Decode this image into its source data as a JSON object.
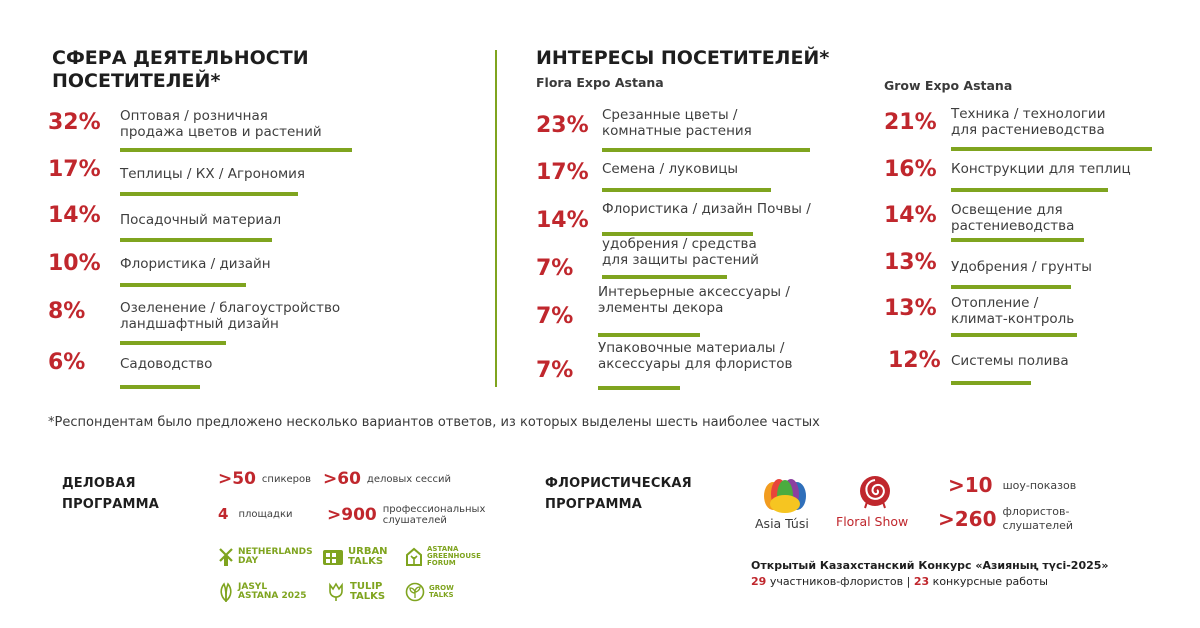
{
  "left": {
    "title": "СФЕРА ДЕЯТЕЛЬНОСТИ\nПОСЕТИТЕЛЕЙ*",
    "items": [
      {
        "pct": "32%",
        "label": "Оптовая / розничная\nпродажа цветов и растений",
        "value": 32
      },
      {
        "pct": "17%",
        "label": "Теплицы / КХ / Агрономия",
        "value": 17
      },
      {
        "pct": "14%",
        "label": "Посадочный материал",
        "value": 14
      },
      {
        "pct": "10%",
        "label": "Флористика / дизайн",
        "value": 10
      },
      {
        "pct": "8%",
        "label": "Озеленение / благоустройство\nландшафтный дизайн",
        "value": 8
      },
      {
        "pct": "6%",
        "label": "Садоводство",
        "value": 6
      }
    ]
  },
  "right": {
    "title": "ИНТЕРЕСЫ ПОСЕТИТЕЛЕЙ*",
    "flora": {
      "subtitle": "Flora Expo Astana",
      "items": [
        {
          "pct": "23%",
          "label": "Срезанные цветы /\nкомнатные растения",
          "value": 23
        },
        {
          "pct": "17%",
          "label": "Семена / луковицы",
          "value": 17
        },
        {
          "pct": "14%",
          "label": "Флористика / дизайн Почвы /",
          "value": 14
        },
        {
          "pct": "7%",
          "label": "удобрения / средства\nдля защиты растений",
          "value": 7
        },
        {
          "pct": "7%",
          "label": "Интерьерные аксессуары /\nэлементы декора",
          "value": 7
        },
        {
          "pct": "7%",
          "label": "Упаковочные материалы /\nаксессуары для флористов",
          "value": 7
        }
      ]
    },
    "grow": {
      "subtitle": "Grow Expo Astana",
      "items": [
        {
          "pct": "21%",
          "label": "Техника / технологии\nдля растениеводства",
          "value": 21
        },
        {
          "pct": "16%",
          "label": "Конструкции для теплиц",
          "value": 16
        },
        {
          "pct": "14%",
          "label": "Освещение для\nрастениеводства",
          "value": 14
        },
        {
          "pct": "13%",
          "label": "Удобрения / грунты",
          "value": 13
        },
        {
          "pct": "13%",
          "label": "Отопление /\nклимат-контроль",
          "value": 13
        },
        {
          "pct": "12%",
          "label": "Системы полива",
          "value": 12
        }
      ]
    }
  },
  "footnote": "*Респондентам было предложено несколько вариантов ответов, из которых выделены шесть наиболее частых",
  "business": {
    "title": "ДЕЛОВАЯ\nПРОГРАММА",
    "stats": [
      {
        "value": ">50",
        "label": "спикеров"
      },
      {
        "value": ">60",
        "label": "деловых сессий"
      },
      {
        "value": "4",
        "label": "площадки"
      },
      {
        "value": ">900",
        "label": "профессиональных\nслушателей"
      }
    ],
    "logos": [
      {
        "text": "NETHERLANDS\nDAY",
        "icon": "windmill-icon"
      },
      {
        "text": "URBAN\nTALKS",
        "icon": "building-icon"
      },
      {
        "text": "ASTANA\nGREENHOUSE\nFORUM",
        "icon": "greenhouse-icon"
      },
      {
        "text": "JASYL\nASTANA 2025",
        "icon": "leaves-icon"
      },
      {
        "text": "TULIP\nTALKS",
        "icon": "tulip-icon"
      },
      {
        "text": "GROW\nTALKS",
        "icon": "sprout-icon"
      }
    ]
  },
  "floristic": {
    "title": "ФЛОРИСТИЧЕСКАЯ\nПРОГРАММА",
    "brand1": "Asia Túsi",
    "brand2": "Floral Show",
    "stats": [
      {
        "value": ">10",
        "label": "шоу-показов"
      },
      {
        "value": ">260",
        "label": "флористов-\nслушателей"
      }
    ],
    "contest_title": "Открытый Казахстанский Конкурс «Азияның түсі-2025»",
    "contest_n1": "29",
    "contest_t1": "участников-флористов |",
    "contest_n2": "23",
    "contest_t2": "конкурсные работы"
  },
  "colors": {
    "accent": "#c0272d",
    "bar": "#7fa41f"
  }
}
